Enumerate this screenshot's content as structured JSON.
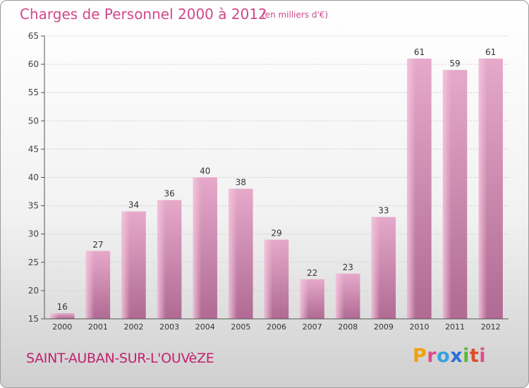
{
  "title": "Charges de Personnel 2000 à 2012",
  "subtitle": "(en milliers d'€)",
  "commune": "SAINT-AUBAN-SUR-L'OUVèZE",
  "logo": [
    "P",
    "r",
    "o",
    "x",
    "i",
    "t",
    "i"
  ],
  "colors": {
    "bar": "#d889b3",
    "accent": "#d0488a"
  },
  "chart_data": {
    "type": "bar",
    "categories": [
      "2000",
      "2001",
      "2002",
      "2003",
      "2004",
      "2005",
      "2006",
      "2007",
      "2008",
      "2009",
      "2010",
      "2011",
      "2012"
    ],
    "values": [
      16,
      27,
      34,
      36,
      40,
      38,
      29,
      22,
      23,
      33,
      61,
      59,
      61
    ],
    "ylim": [
      15,
      65
    ],
    "yticks": [
      15,
      20,
      25,
      30,
      35,
      40,
      45,
      50,
      55,
      60,
      65
    ],
    "grid": true,
    "legend": "none"
  }
}
